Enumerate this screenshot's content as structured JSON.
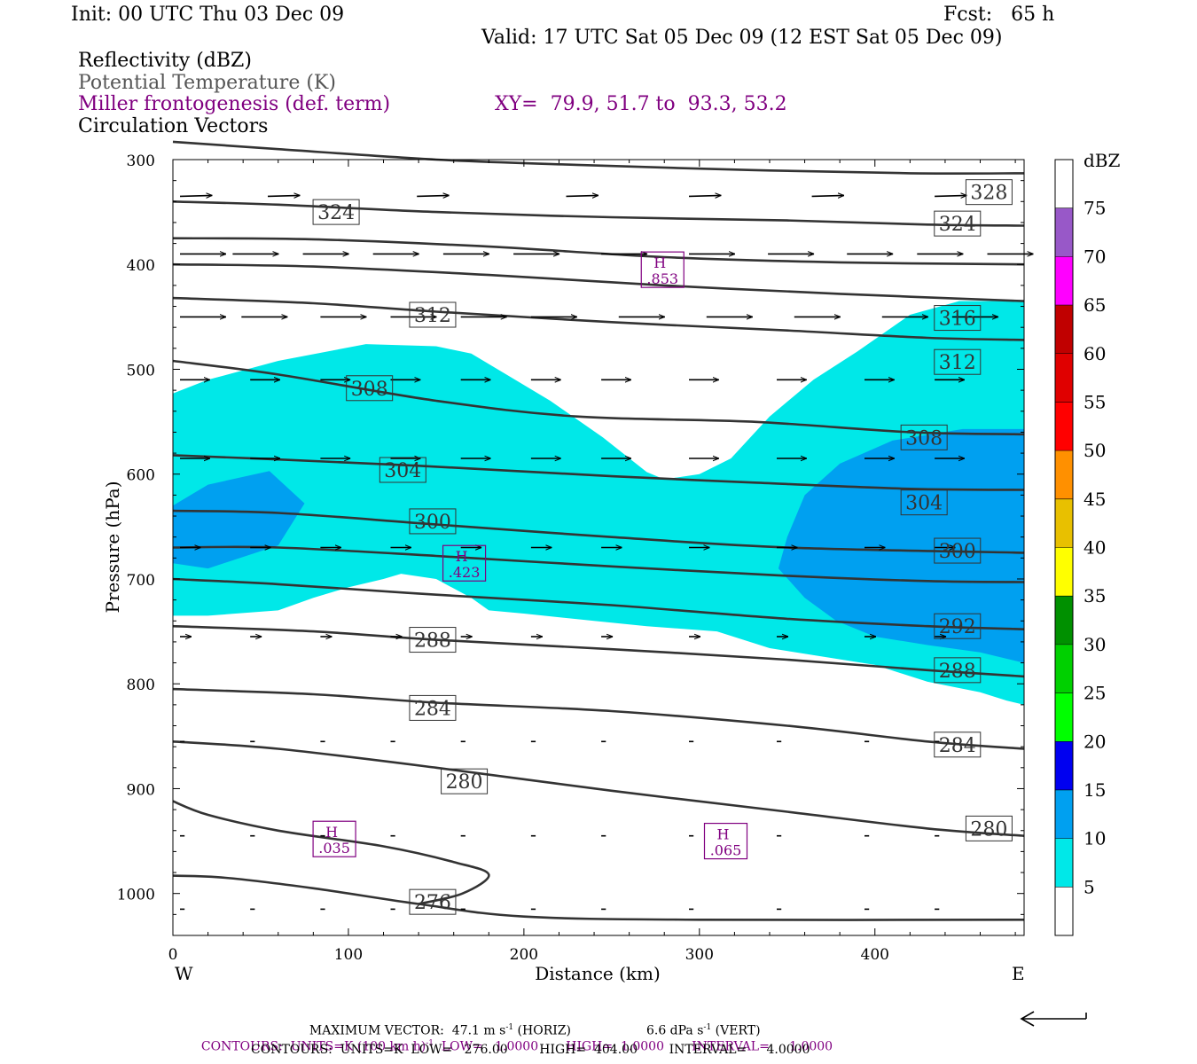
{
  "header": {
    "init": "Init: 00 UTC Thu 03 Dec 09",
    "fcst": "Fcst:   65 h",
    "valid": "Valid: 17 UTC Sat 05 Dec 09 (12 EST Sat 05 Dec 09)",
    "field1": "Reflectivity (dBZ)",
    "field2": "Potential Temperature (K)",
    "field3": "Miller frontogenesis (def. term)",
    "xy": "XY=  79.9, 51.7 to  93.3, 53.2",
    "field4": "Circulation Vectors"
  },
  "colors": {
    "dbz_5": "#00e8e8",
    "dbz_10": "#00a0f0",
    "dbz_15": "#0000f0",
    "dbz_20": "#00ff00",
    "dbz_25": "#00d000",
    "dbz_30": "#009000",
    "dbz_35": "#ffff00",
    "dbz_40": "#e8c000",
    "dbz_45": "#ff9000",
    "dbz_50": "#ff0000",
    "dbz_55": "#e00000",
    "dbz_60": "#c00000",
    "dbz_65": "#ff00ff",
    "dbz_70": "#9858c8",
    "theta": "#333333",
    "front": "#800080"
  },
  "chart_data": {
    "type": "contour",
    "xlabel": "Distance (km)",
    "ylabel": "Pressure (hPa)",
    "xlim": [
      0,
      485
    ],
    "ylim": [
      1040,
      300
    ],
    "x_ticks": [
      "0",
      "100",
      "200",
      "300",
      "400"
    ],
    "y_ticks": [
      "300",
      "400",
      "500",
      "600",
      "700",
      "800",
      "900",
      "1000"
    ],
    "x_end_labels": {
      "left": "W",
      "right": "E"
    },
    "colorbar": {
      "title": "dBZ",
      "levels": [
        "5",
        "10",
        "15",
        "20",
        "25",
        "30",
        "35",
        "40",
        "45",
        "50",
        "55",
        "60",
        "65",
        "70",
        "75"
      ]
    },
    "theta_contours": [
      {
        "label": "328",
        "points": [
          [
            0,
            283
          ],
          [
            60,
            290
          ],
          [
            150,
            300
          ],
          [
            230,
            305
          ],
          [
            330,
            310
          ],
          [
            420,
            313
          ],
          [
            485,
            313
          ]
        ]
      },
      {
        "label": "324",
        "points": [
          [
            0,
            340
          ],
          [
            60,
            343
          ],
          [
            150,
            350
          ],
          [
            250,
            355
          ],
          [
            350,
            358
          ],
          [
            430,
            362
          ],
          [
            485,
            363
          ]
        ]
      },
      {
        "label": "324",
        "points": [
          [
            0,
            375
          ],
          [
            80,
            376
          ],
          [
            180,
            383
          ],
          [
            280,
            393
          ],
          [
            380,
            398
          ],
          [
            485,
            400
          ]
        ]
      },
      {
        "label": "",
        "points": [
          [
            0,
            400
          ],
          [
            80,
            402
          ],
          [
            180,
            410
          ],
          [
            280,
            420
          ],
          [
            380,
            428
          ],
          [
            485,
            435
          ]
        ]
      },
      {
        "label": "316",
        "points": [
          [
            0,
            432
          ],
          [
            80,
            437
          ],
          [
            150,
            445
          ],
          [
            250,
            455
          ],
          [
            350,
            463
          ],
          [
            430,
            470
          ],
          [
            485,
            472
          ]
        ]
      },
      {
        "label": "312",
        "points": [
          [
            0,
            492
          ],
          [
            60,
            505
          ],
          [
            150,
            530
          ],
          [
            230,
            545
          ],
          [
            330,
            550
          ],
          [
            420,
            560
          ],
          [
            485,
            562
          ]
        ]
      },
      {
        "label": "308",
        "points": [
          [
            0,
            582
          ],
          [
            60,
            586
          ],
          [
            140,
            592
          ],
          [
            250,
            602
          ],
          [
            330,
            608
          ],
          [
            420,
            614
          ],
          [
            485,
            615
          ]
        ]
      },
      {
        "label": "304",
        "points": [
          [
            0,
            635
          ],
          [
            60,
            637
          ],
          [
            150,
            648
          ],
          [
            250,
            660
          ],
          [
            350,
            670
          ],
          [
            485,
            675
          ]
        ]
      },
      {
        "label": "300",
        "points": [
          [
            0,
            670
          ],
          [
            60,
            670
          ],
          [
            150,
            678
          ],
          [
            250,
            688
          ],
          [
            350,
            697
          ],
          [
            430,
            702
          ],
          [
            485,
            703
          ]
        ]
      },
      {
        "label": "292",
        "points": [
          [
            0,
            700
          ],
          [
            60,
            705
          ],
          [
            150,
            715
          ],
          [
            250,
            725
          ],
          [
            350,
            738
          ],
          [
            430,
            745
          ],
          [
            485,
            748
          ]
        ]
      },
      {
        "label": "288",
        "points": [
          [
            0,
            745
          ],
          [
            80,
            750
          ],
          [
            150,
            758
          ],
          [
            250,
            767
          ],
          [
            350,
            777
          ],
          [
            430,
            787
          ],
          [
            485,
            793
          ]
        ]
      },
      {
        "label": "284",
        "points": [
          [
            0,
            805
          ],
          [
            80,
            810
          ],
          [
            150,
            818
          ],
          [
            250,
            826
          ],
          [
            350,
            840
          ],
          [
            430,
            855
          ],
          [
            485,
            862
          ]
        ]
      },
      {
        "label": "280",
        "points": [
          [
            0,
            855
          ],
          [
            60,
            862
          ],
          [
            150,
            880
          ],
          [
            250,
            902
          ],
          [
            350,
            922
          ],
          [
            430,
            938
          ],
          [
            485,
            945
          ]
        ]
      },
      {
        "label": "",
        "points": [
          [
            0,
            912
          ],
          [
            20,
            925
          ],
          [
            60,
            940
          ],
          [
            120,
            955
          ],
          [
            160,
            970
          ],
          [
            180,
            982
          ],
          [
            165,
            1000
          ],
          [
            140,
            1010
          ]
        ]
      },
      {
        "label": "276",
        "points": [
          [
            0,
            983
          ],
          [
            30,
            985
          ],
          [
            80,
            995
          ],
          [
            140,
            1010
          ],
          [
            200,
            1022
          ],
          [
            300,
            1025
          ],
          [
            485,
            1025
          ]
        ]
      }
    ],
    "theta_labels": [
      {
        "text": "328",
        "x": 465,
        "p": 331
      },
      {
        "text": "324",
        "x": 93,
        "p": 350
      },
      {
        "text": "324",
        "x": 447,
        "p": 361
      },
      {
        "text": "312",
        "x": 148,
        "p": 448
      },
      {
        "text": "316",
        "x": 447,
        "p": 451
      },
      {
        "text": "308",
        "x": 112,
        "p": 518
      },
      {
        "text": "312",
        "x": 447,
        "p": 493
      },
      {
        "text": "304",
        "x": 131,
        "p": 596
      },
      {
        "text": "308",
        "x": 428,
        "p": 565
      },
      {
        "text": "300",
        "x": 148,
        "p": 645
      },
      {
        "text": "304",
        "x": 428,
        "p": 627
      },
      {
        "text": "300",
        "x": 447,
        "p": 673
      },
      {
        "text": "288",
        "x": 148,
        "p": 758
      },
      {
        "text": "292",
        "x": 447,
        "p": 745
      },
      {
        "text": "288",
        "x": 447,
        "p": 787
      },
      {
        "text": "284",
        "x": 148,
        "p": 823
      },
      {
        "text": "284",
        "x": 447,
        "p": 858
      },
      {
        "text": "280",
        "x": 166,
        "p": 893
      },
      {
        "text": "280",
        "x": 465,
        "p": 938
      },
      {
        "text": "276",
        "x": 148,
        "p": 1008
      }
    ],
    "frontogenesis_maxima": [
      {
        "text": "H",
        "value": ".853",
        "x": 279,
        "p": 405
      },
      {
        "text": "H",
        "value": ".423",
        "x": 166,
        "p": 685
      },
      {
        "text": "H",
        "value": ".035",
        "x": 92,
        "p": 948
      },
      {
        "text": "H",
        "value": ".065",
        "x": 315,
        "p": 950
      }
    ],
    "reflectivity_5": [
      [
        0,
        523
      ],
      [
        20,
        510
      ],
      [
        60,
        492
      ],
      [
        110,
        476
      ],
      [
        150,
        478
      ],
      [
        170,
        485
      ],
      [
        190,
        505
      ],
      [
        215,
        530
      ],
      [
        245,
        565
      ],
      [
        270,
        598
      ],
      [
        280,
        605
      ],
      [
        300,
        600
      ],
      [
        318,
        585
      ],
      [
        340,
        545
      ],
      [
        365,
        510
      ],
      [
        390,
        483
      ],
      [
        420,
        448
      ],
      [
        448,
        435
      ],
      [
        485,
        435
      ],
      [
        485,
        820
      ],
      [
        475,
        816
      ],
      [
        460,
        808
      ],
      [
        430,
        798
      ],
      [
        400,
        782
      ],
      [
        340,
        766
      ],
      [
        310,
        750
      ],
      [
        270,
        745
      ],
      [
        240,
        740
      ],
      [
        200,
        733
      ],
      [
        180,
        730
      ],
      [
        170,
        718
      ],
      [
        150,
        700
      ],
      [
        130,
        695
      ],
      [
        120,
        700
      ],
      [
        100,
        708
      ],
      [
        80,
        718
      ],
      [
        60,
        730
      ],
      [
        20,
        735
      ],
      [
        0,
        735
      ]
    ],
    "reflectivity_10": [
      [
        [
          0,
          630
        ],
        [
          20,
          610
        ],
        [
          55,
          597
        ],
        [
          75,
          628
        ],
        [
          60,
          668
        ],
        [
          20,
          690
        ],
        [
          0,
          685
        ]
      ],
      [
        [
          485,
          557
        ],
        [
          450,
          557
        ],
        [
          410,
          568
        ],
        [
          380,
          590
        ],
        [
          360,
          620
        ],
        [
          350,
          660
        ],
        [
          345,
          690
        ],
        [
          360,
          718
        ],
        [
          378,
          740
        ],
        [
          400,
          755
        ],
        [
          430,
          763
        ],
        [
          460,
          770
        ],
        [
          485,
          780
        ]
      ]
    ],
    "vector_rows": [
      {
        "p": 335,
        "x": [
          0,
          50,
          135,
          220,
          290,
          360,
          430
        ],
        "u": 14,
        "w": 1
      },
      {
        "p": 390,
        "x": [
          0,
          30,
          70,
          110,
          150,
          190,
          240,
          290,
          335,
          380,
          420,
          460
        ],
        "u": 20,
        "w": 0
      },
      {
        "p": 450,
        "x": [
          0,
          35,
          80,
          120,
          160,
          200,
          250,
          300,
          350,
          400,
          440
        ],
        "u": 20,
        "w": 0
      },
      {
        "p": 510,
        "x": [
          0,
          40,
          80,
          120,
          160,
          200,
          240,
          290,
          340,
          390,
          430
        ],
        "u": 13,
        "w": 0
      },
      {
        "p": 585,
        "x": [
          0,
          40,
          80,
          120,
          160,
          200,
          240,
          290,
          340,
          390,
          430
        ],
        "u": 13,
        "w": 0
      },
      {
        "p": 670,
        "x": [
          0,
          40,
          80,
          120,
          160,
          200,
          240,
          290,
          340,
          390,
          430
        ],
        "u": 9,
        "w": 0
      },
      {
        "p": 755,
        "x": [
          0,
          40,
          80,
          120,
          160,
          200,
          240,
          290,
          340,
          390,
          430
        ],
        "u": 5,
        "w": 0
      },
      {
        "p": 855,
        "x": [
          0,
          40,
          80,
          120,
          160,
          200,
          240,
          290,
          340,
          390,
          430
        ],
        "u": 2,
        "w": 0
      },
      {
        "p": 945,
        "x": [
          0,
          40,
          80,
          120,
          160,
          200,
          240,
          290,
          340,
          390,
          430
        ],
        "u": 2,
        "w": 0
      },
      {
        "p": 1015,
        "x": [
          0,
          40,
          80,
          120,
          160,
          200,
          240,
          290,
          340,
          390,
          430
        ],
        "u": 2,
        "w": 0
      }
    ]
  },
  "footer": {
    "line1a": "MAXIMUM VECTOR:  47.1 m s",
    "line1b": "-1",
    "line1c": " (HORIZ)",
    "line1d": "6.6 dPa s",
    "line1e": "-1",
    "line1f": " (VERT)",
    "line2a": "CONTOURS:  UNITS=K (100 km h)",
    "line2b": "-1",
    "line2c": "  LOW=   1.0000       HIGH=  1.0000       INTERVAL=     1.0000",
    "line3": "CONTOURS:  UNITS=K  LOW=   276.00        HIGH=  404.00        INTERVAL=     4.0000"
  }
}
